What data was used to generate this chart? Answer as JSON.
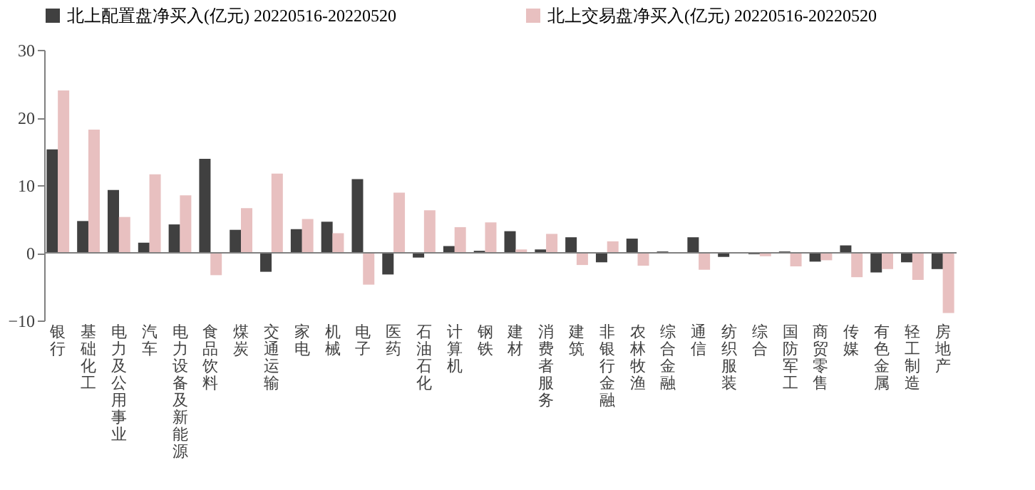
{
  "chart_data": {
    "type": "bar",
    "categories": [
      "银行",
      "基础化工",
      "电力及公用事业",
      "汽车",
      "电力设备及新能源",
      "食品饮料",
      "煤炭",
      "交通运输",
      "家电",
      "机械",
      "电子",
      "医药",
      "石油石化",
      "计算机",
      "钢铁",
      "建材",
      "消费者服务",
      "建筑",
      "非银行金融",
      "农林牧渔",
      "综合金融",
      "通信",
      "纺织服装",
      "综合",
      "国防军工",
      "商贸零售",
      "传媒",
      "有色金属",
      "轻工制造",
      "房地产"
    ],
    "series": [
      {
        "name": "北上配置盘净买入(亿元) 20220516-20220520",
        "color": "#404040",
        "values": [
          15.3,
          4.7,
          9.3,
          1.5,
          4.2,
          13.9,
          3.4,
          -2.8,
          3.5,
          4.6,
          10.9,
          -3.2,
          -0.7,
          1.0,
          0.3,
          3.2,
          0.5,
          2.3,
          -1.4,
          2.1,
          0.2,
          2.3,
          -0.6,
          -0.2,
          0.2,
          -1.3,
          1.1,
          -2.9,
          -1.4,
          -2.4
        ]
      },
      {
        "name": "北上交易盘净买入(亿元) 20220516-20220520",
        "color": "#e8c0c0",
        "values": [
          24.0,
          18.2,
          5.3,
          11.6,
          8.5,
          -3.3,
          6.6,
          11.7,
          5.0,
          2.9,
          -4.7,
          8.9,
          6.3,
          3.8,
          4.5,
          0.5,
          2.8,
          -1.8,
          1.7,
          -1.9,
          null,
          -2.5,
          0.0,
          -0.5,
          -2.0,
          -1.1,
          -3.6,
          -2.4,
          -4.0,
          -8.9
        ]
      }
    ],
    "ylim": [
      -10,
      30
    ],
    "yticks": [
      -10,
      0,
      10,
      20,
      30
    ],
    "ref_lines": [
      {
        "axis": "y",
        "value": 0,
        "color": "#808080"
      }
    ],
    "grid": false,
    "legend": "top"
  }
}
